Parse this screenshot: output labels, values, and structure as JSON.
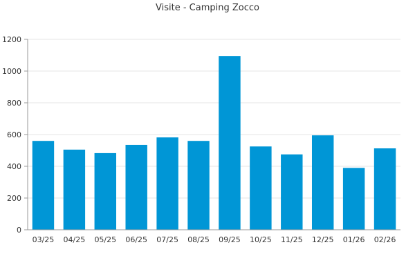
{
  "chart_data": {
    "type": "bar",
    "title": "Visite - Camping Zocco",
    "xlabel": "",
    "ylabel": "",
    "categories": [
      "03/25",
      "04/25",
      "05/25",
      "06/25",
      "07/25",
      "08/25",
      "09/25",
      "10/25",
      "11/25",
      "12/25",
      "01/26",
      "02/26"
    ],
    "values": [
      560,
      505,
      483,
      535,
      582,
      560,
      1095,
      525,
      475,
      595,
      390,
      513
    ],
    "ylim": [
      0,
      1200
    ],
    "yticks": [
      0,
      200,
      400,
      600,
      800,
      1000,
      1200
    ],
    "grid": true,
    "legend": "none",
    "bar_color": "#0096d6"
  }
}
